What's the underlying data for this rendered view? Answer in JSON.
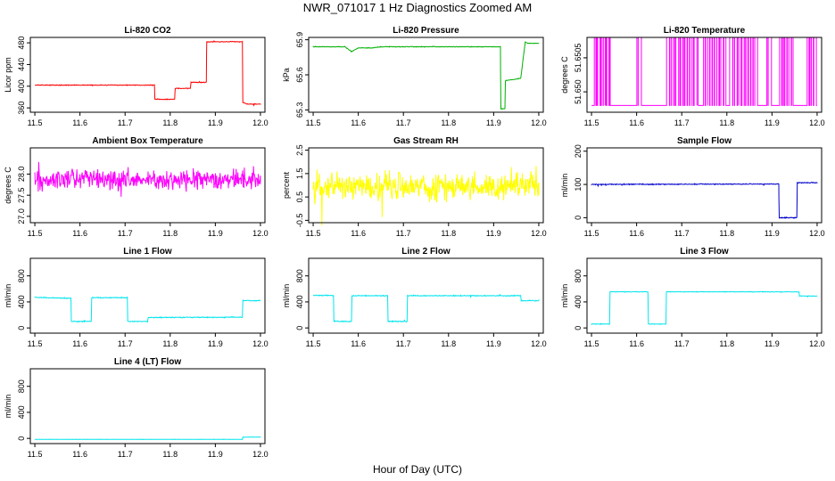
{
  "figure": {
    "title": "NWR_071017  1 Hz Diagnostics Zoomed AM",
    "xlabel": "Hour of Day (UTC)"
  },
  "chart_data": [
    {
      "type": "line",
      "title": "Li-820 CO2",
      "ylabel": "Licor ppm",
      "color": "#ff0000",
      "xlim": [
        11.49,
        12.01
      ],
      "ylim": [
        352,
        490
      ],
      "xticks": [
        "11.5",
        "11.6",
        "11.7",
        "11.8",
        "11.9",
        "12.0"
      ],
      "yticks": [
        360,
        400,
        440,
        480
      ],
      "noise": 1,
      "x": [
        11.5,
        11.765,
        11.766,
        11.81,
        11.811,
        11.845,
        11.846,
        11.88,
        11.881,
        11.96,
        11.961,
        11.97,
        12.0
      ],
      "y": [
        402,
        402,
        376,
        376,
        396,
        396,
        407,
        407,
        482,
        482,
        370,
        367,
        367
      ]
    },
    {
      "type": "line",
      "title": "Li-820 Pressure",
      "ylabel": "kPa",
      "color": "#00b000",
      "xlim": [
        11.49,
        12.01
      ],
      "ylim": [
        65.28,
        65.92
      ],
      "xticks": [
        "11.5",
        "11.6",
        "11.7",
        "11.8",
        "11.9",
        "12.0"
      ],
      "yticks": [
        65.3,
        65.6,
        65.9
      ],
      "ytick_labels": [
        "65.3",
        "65.6",
        "65.9"
      ],
      "noise": 0.004,
      "x": [
        11.5,
        11.57,
        11.585,
        11.6,
        11.63,
        11.65,
        11.7,
        11.8,
        11.915,
        11.916,
        11.925,
        11.926,
        11.96,
        11.961,
        11.97,
        11.975,
        12.0
      ],
      "y": [
        65.84,
        65.84,
        65.8,
        65.83,
        65.83,
        65.84,
        65.84,
        65.84,
        65.84,
        65.31,
        65.31,
        65.55,
        65.57,
        65.6,
        65.88,
        65.87,
        65.87
      ]
    },
    {
      "type": "line",
      "title": "Li-820 Temperature",
      "ylabel": "degrees C",
      "color": "#ff00ff",
      "xlim": [
        11.49,
        12.01
      ],
      "ylim": [
        51.6497,
        51.6508
      ],
      "xticks": [
        "11.5",
        "11.6",
        "11.7",
        "11.8",
        "11.9",
        "12.0"
      ],
      "yticks": [
        51.65,
        51.6505
      ],
      "ytick_labels": [
        "51.650",
        "51.6505"
      ],
      "noise": 0,
      "base": 51.6498,
      "spike": 51.6508,
      "spikes": [
        11.508,
        11.512,
        11.516,
        11.52,
        11.524,
        11.528,
        11.532,
        11.536,
        11.54,
        11.602,
        11.607,
        11.67,
        11.675,
        11.68,
        11.685,
        11.69,
        11.695,
        11.7,
        11.705,
        11.71,
        11.715,
        11.72,
        11.725,
        11.73,
        11.735,
        11.75,
        11.755,
        11.76,
        11.765,
        11.77,
        11.775,
        11.78,
        11.785,
        11.79,
        11.795,
        11.81,
        11.815,
        11.82,
        11.825,
        11.83,
        11.835,
        11.84,
        11.845,
        11.85,
        11.855,
        11.86,
        11.865,
        11.89,
        11.895,
        11.92,
        11.925,
        11.93,
        11.935,
        11.94,
        11.945,
        11.98,
        11.985,
        11.99,
        11.995
      ]
    },
    {
      "type": "line",
      "title": "Ambient Box Temperature",
      "ylabel": "degrees C",
      "color": "#ff00ff",
      "xlim": [
        11.49,
        12.01
      ],
      "ylim": [
        26.85,
        28.62
      ],
      "xticks": [
        "11.5",
        "11.6",
        "11.7",
        "11.8",
        "11.9",
        "12.0"
      ],
      "yticks": [
        27.0,
        27.5,
        28.0
      ],
      "ytick_labels": [
        "27.0",
        "27.5",
        "28.0"
      ],
      "noise": 0.32,
      "x": [
        11.5,
        12.0
      ],
      "y": [
        27.87,
        27.87
      ]
    },
    {
      "type": "line",
      "title": "Gas Stream RH",
      "ylabel": "percent",
      "color": "#ffff00",
      "xlim": [
        11.49,
        12.01
      ],
      "ylim": [
        -0.6,
        2.6
      ],
      "xticks": [
        "11.5",
        "11.6",
        "11.7",
        "11.8",
        "11.9",
        "12.0"
      ],
      "yticks": [
        -0.5,
        0.5,
        1.5,
        2.5
      ],
      "ytick_labels": [
        "-0.5",
        "0.5",
        "1.5",
        "2.5"
      ],
      "noise": 0.85,
      "x": [
        11.5,
        12.0
      ],
      "y": [
        0.95,
        0.95
      ]
    },
    {
      "type": "line",
      "title": "Sample Flow",
      "ylabel": "ml/min",
      "color": "#0000cc",
      "xlim": [
        11.49,
        12.01
      ],
      "ylim": [
        -15,
        210
      ],
      "xticks": [
        "11.5",
        "11.6",
        "11.7",
        "11.8",
        "11.9",
        "12.0"
      ],
      "yticks": [
        0,
        100,
        200
      ],
      "noise": 2,
      "x": [
        11.5,
        11.8,
        11.915,
        11.916,
        11.955,
        11.956,
        12.0
      ],
      "y": [
        100,
        101,
        101,
        0,
        0,
        105,
        105
      ]
    },
    {
      "type": "line",
      "title": "Line 1 Flow",
      "ylabel": "ml/min",
      "color": "#00e5ee",
      "xlim": [
        11.49,
        12.01
      ],
      "ylim": [
        -80,
        1070
      ],
      "xticks": [
        "11.5",
        "11.6",
        "11.7",
        "11.8",
        "11.9",
        "12.0"
      ],
      "yticks": [
        0,
        400,
        800
      ],
      "noise": 10,
      "x": [
        11.5,
        11.58,
        11.581,
        11.625,
        11.626,
        11.705,
        11.706,
        11.75,
        11.751,
        11.96,
        11.961,
        12.0
      ],
      "y": [
        470,
        455,
        100,
        100,
        465,
        465,
        100,
        100,
        160,
        165,
        420,
        420
      ]
    },
    {
      "type": "line",
      "title": "Line 2 Flow",
      "ylabel": "ml/min",
      "color": "#00e5ee",
      "xlim": [
        11.49,
        12.01
      ],
      "ylim": [
        -80,
        1070
      ],
      "xticks": [
        "11.5",
        "11.6",
        "11.7",
        "11.8",
        "11.9",
        "12.0"
      ],
      "yticks": [
        0,
        400,
        800
      ],
      "noise": 10,
      "x": [
        11.5,
        11.545,
        11.546,
        11.585,
        11.586,
        11.665,
        11.666,
        11.708,
        11.709,
        11.96,
        11.961,
        12.0
      ],
      "y": [
        500,
        500,
        100,
        100,
        495,
        495,
        100,
        100,
        495,
        495,
        420,
        420
      ]
    },
    {
      "type": "line",
      "title": "Line 3 Flow",
      "ylabel": "ml/min",
      "color": "#00e5ee",
      "xlim": [
        11.49,
        12.01
      ],
      "ylim": [
        -80,
        1070
      ],
      "xticks": [
        "11.5",
        "11.6",
        "11.7",
        "11.8",
        "11.9",
        "12.0"
      ],
      "yticks": [
        0,
        400,
        800
      ],
      "noise": 6,
      "x": [
        11.5,
        11.54,
        11.541,
        11.625,
        11.626,
        11.665,
        11.666,
        11.96,
        11.961,
        12.0
      ],
      "y": [
        60,
        60,
        555,
        555,
        60,
        60,
        555,
        555,
        490,
        490
      ]
    },
    {
      "type": "line",
      "title": "Line 4 (LT) Flow",
      "ylabel": "ml/min",
      "color": "#00e5ee",
      "xlim": [
        11.49,
        12.01
      ],
      "ylim": [
        -80,
        1070
      ],
      "xticks": [
        "11.5",
        "11.6",
        "11.7",
        "11.8",
        "11.9",
        "12.0"
      ],
      "yticks": [
        0,
        400,
        800
      ],
      "noise": 3,
      "x": [
        11.5,
        11.96,
        11.961,
        12.0
      ],
      "y": [
        -15,
        -15,
        20,
        20
      ]
    }
  ]
}
